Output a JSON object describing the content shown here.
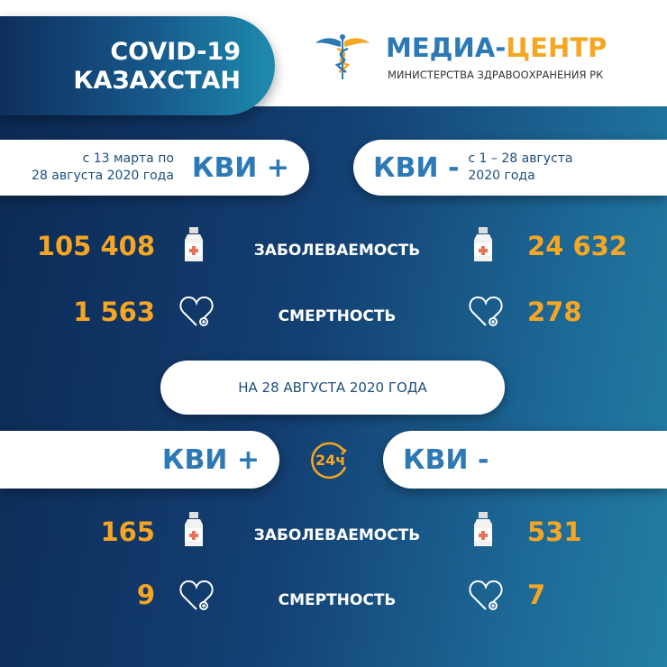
{
  "header": {
    "title_line1": "COVID-19",
    "title_line2": "КАЗАХСТАН",
    "brand_part1": "МЕДИА-",
    "brand_part2": "ЦЕНТР",
    "brand_subtitle": "МИНИСТЕРСТВА ЗДРАВООХРАНЕНИЯ РК"
  },
  "cumulative": {
    "left": {
      "period_line1": "с 13 марта по",
      "period_line2": "28 августа 2020 года",
      "label": "КВИ +",
      "cases": "105 408",
      "deaths": "1 563"
    },
    "right": {
      "period_line1": "с 1 – 28 августа",
      "period_line2": "2020 года",
      "label": "КВИ -",
      "cases": "24 632",
      "deaths": "278"
    }
  },
  "labels": {
    "cases": "ЗАБОЛЕВАЕМОСТЬ",
    "deaths": "СМЕРТНОСТЬ"
  },
  "daily": {
    "date": "НА 28 АВГУСТА 2020 ГОДА",
    "badge": "24ч",
    "left": {
      "label": "КВИ +",
      "cases": "165",
      "deaths": "9"
    },
    "right": {
      "label": "КВИ -",
      "cases": "531",
      "deaths": "7"
    }
  },
  "colors": {
    "accent_orange": "#f6a623",
    "brand_blue": "#2c79b6",
    "bg_dark": "#0c2a55"
  }
}
